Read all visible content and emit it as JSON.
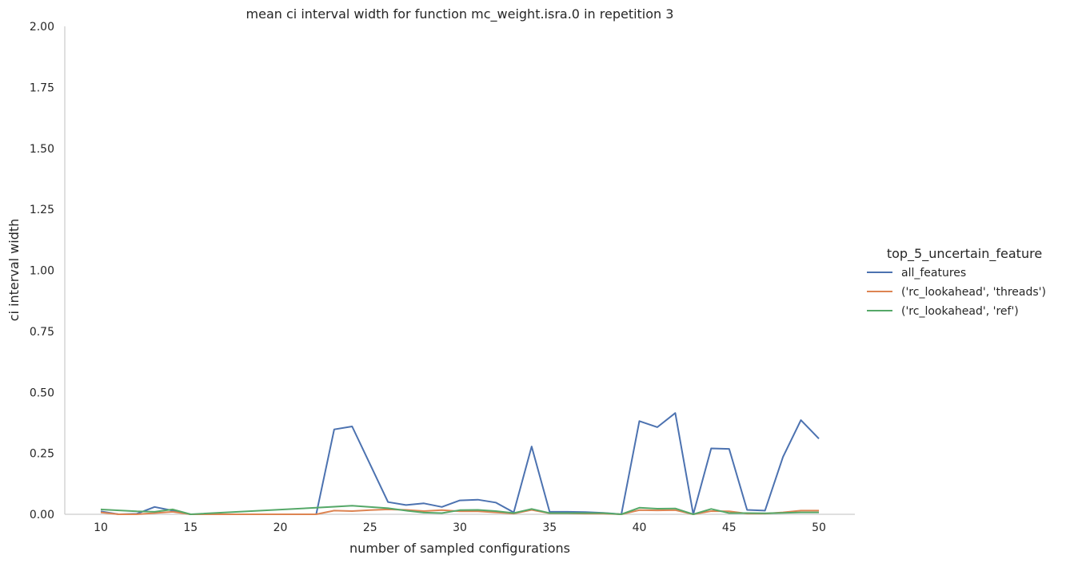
{
  "chart_data": {
    "type": "line",
    "title": "mean ci interval width for function mc_weight.isra.0 in repetition 3",
    "xlabel": "number of sampled configurations",
    "ylabel": "ci interval width",
    "xlim": [
      8,
      52
    ],
    "ylim": [
      0,
      2
    ],
    "xticks": [
      10,
      15,
      20,
      25,
      30,
      35,
      40,
      45,
      50
    ],
    "xtick_labels": [
      "10",
      "15",
      "20",
      "25",
      "30",
      "35",
      "40",
      "45",
      "50"
    ],
    "yticks": [
      0,
      0.25,
      0.5,
      0.75,
      1.0,
      1.25,
      1.5,
      1.75,
      2.0
    ],
    "ytick_labels": [
      "0.00",
      "0.25",
      "0.50",
      "0.75",
      "1.00",
      "1.25",
      "1.50",
      "1.75",
      "2.00"
    ],
    "grid": false,
    "legend": {
      "title": "top_5_uncertain_feature",
      "placement": "right"
    },
    "series": [
      {
        "name": "all_features",
        "color": "#4c72b0",
        "points": [
          [
            10,
            0.012
          ],
          [
            11,
            0.0
          ],
          [
            12,
            0.002
          ],
          [
            13,
            0.03
          ],
          [
            14,
            0.015
          ],
          [
            15,
            0.0
          ],
          [
            16,
            0.0
          ],
          [
            17,
            0.0
          ],
          [
            18,
            0.0
          ],
          [
            19,
            0.0
          ],
          [
            20,
            0.0
          ],
          [
            21,
            0.0
          ],
          [
            22,
            0.0
          ],
          [
            23,
            0.348
          ],
          [
            24,
            0.36
          ],
          [
            25,
            0.205
          ],
          [
            26,
            0.05
          ],
          [
            27,
            0.038
          ],
          [
            28,
            0.045
          ],
          [
            29,
            0.03
          ],
          [
            30,
            0.057
          ],
          [
            31,
            0.06
          ],
          [
            32,
            0.048
          ],
          [
            33,
            0.008
          ],
          [
            34,
            0.278
          ],
          [
            35,
            0.01
          ],
          [
            36,
            0.01
          ],
          [
            37,
            0.009
          ],
          [
            38,
            0.006
          ],
          [
            39,
            0.0
          ],
          [
            40,
            0.382
          ],
          [
            41,
            0.357
          ],
          [
            42,
            0.415
          ],
          [
            43,
            0.0
          ],
          [
            44,
            0.27
          ],
          [
            45,
            0.268
          ],
          [
            46,
            0.018
          ],
          [
            47,
            0.015
          ],
          [
            48,
            0.235
          ],
          [
            49,
            0.386
          ],
          [
            50,
            0.31
          ]
        ]
      },
      {
        "name": "('rc_lookahead', 'threads')",
        "color": "#dd8452",
        "points": [
          [
            10,
            0.008
          ],
          [
            11,
            0.0
          ],
          [
            12,
            0.0
          ],
          [
            13,
            0.005
          ],
          [
            14,
            0.01
          ],
          [
            15,
            0.0
          ],
          [
            16,
            0.0
          ],
          [
            17,
            0.0
          ],
          [
            18,
            0.0
          ],
          [
            19,
            0.0
          ],
          [
            20,
            0.0
          ],
          [
            21,
            0.0
          ],
          [
            22,
            0.0
          ],
          [
            23,
            0.015
          ],
          [
            24,
            0.013
          ],
          [
            25,
            0.017
          ],
          [
            26,
            0.02
          ],
          [
            27,
            0.018
          ],
          [
            28,
            0.013
          ],
          [
            29,
            0.017
          ],
          [
            30,
            0.012
          ],
          [
            31,
            0.012
          ],
          [
            32,
            0.008
          ],
          [
            33,
            0.003
          ],
          [
            34,
            0.018
          ],
          [
            35,
            0.004
          ],
          [
            36,
            0.004
          ],
          [
            37,
            0.003
          ],
          [
            38,
            0.003
          ],
          [
            39,
            0.0
          ],
          [
            40,
            0.017
          ],
          [
            41,
            0.016
          ],
          [
            42,
            0.017
          ],
          [
            43,
            0.0
          ],
          [
            44,
            0.013
          ],
          [
            45,
            0.012
          ],
          [
            46,
            0.003
          ],
          [
            47,
            0.003
          ],
          [
            48,
            0.008
          ],
          [
            49,
            0.015
          ],
          [
            50,
            0.015
          ]
        ]
      },
      {
        "name": "('rc_lookahead', 'ref')",
        "color": "#55a868",
        "points": [
          [
            10,
            0.02
          ],
          [
            12,
            0.012
          ],
          [
            13,
            0.01
          ],
          [
            14,
            0.02
          ],
          [
            15,
            0.0
          ],
          [
            22,
            0.027
          ],
          [
            24,
            0.035
          ],
          [
            26,
            0.025
          ],
          [
            27,
            0.015
          ],
          [
            28,
            0.007
          ],
          [
            29,
            0.005
          ],
          [
            30,
            0.017
          ],
          [
            31,
            0.018
          ],
          [
            32,
            0.013
          ],
          [
            33,
            0.005
          ],
          [
            34,
            0.022
          ],
          [
            35,
            0.005
          ],
          [
            36,
            0.005
          ],
          [
            37,
            0.005
          ],
          [
            38,
            0.005
          ],
          [
            39,
            0.0
          ],
          [
            40,
            0.027
          ],
          [
            41,
            0.023
          ],
          [
            42,
            0.024
          ],
          [
            43,
            0.0
          ],
          [
            44,
            0.022
          ],
          [
            45,
            0.005
          ],
          [
            46,
            0.005
          ],
          [
            47,
            0.004
          ],
          [
            48,
            0.006
          ],
          [
            49,
            0.008
          ],
          [
            50,
            0.008
          ]
        ]
      }
    ]
  }
}
